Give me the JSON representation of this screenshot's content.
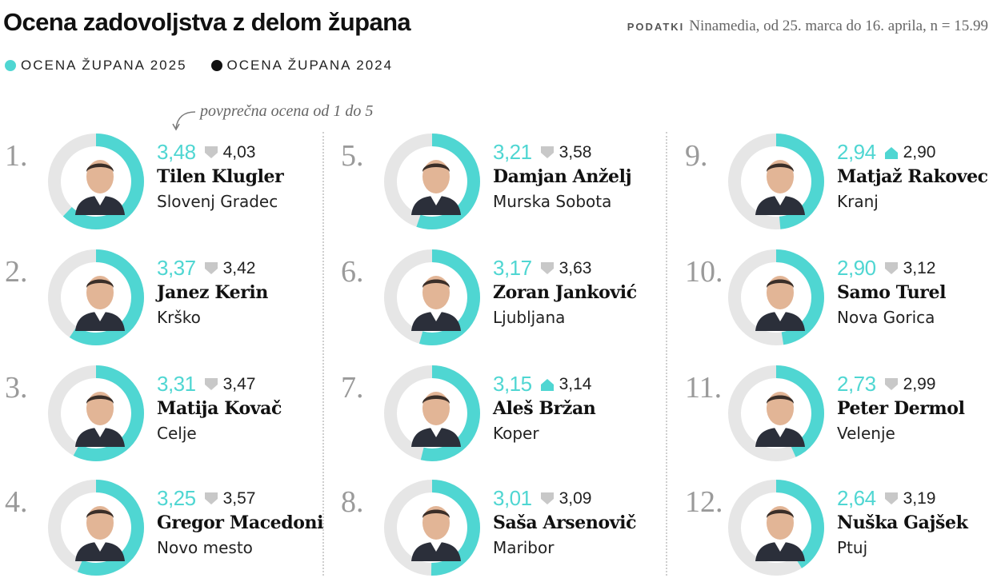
{
  "header": {
    "title": "Ocena zadovoljstva z delom župana",
    "source_label": "PODATKI",
    "source_text": "Ninamedia, od 25. marca do 16. aprila, n = 15.99"
  },
  "legend": [
    {
      "label": "OCENA ŽUPANA 2025",
      "color": "#4fd6d2"
    },
    {
      "label": "OCENA ŽUPANA 2024",
      "color": "#111111"
    }
  ],
  "note": "povprečna ocena od 1 do 5",
  "colors": {
    "accent": "#4fd6d2",
    "track": "#e6e6e6",
    "arrow": "#c8c8c8"
  },
  "chart_data": {
    "type": "table",
    "scale": [
      1,
      5
    ],
    "columns": [
      "rank",
      "score_2025",
      "trend",
      "score_2024",
      "name",
      "city"
    ],
    "rows": [
      {
        "rank": "1.",
        "score_2025": "3,48",
        "trend": "down",
        "score_2024": "4,03",
        "name": "Tilen Klugler",
        "city": "Slovenj Gradec",
        "value": 3.48
      },
      {
        "rank": "2.",
        "score_2025": "3,37",
        "trend": "down",
        "score_2024": "3,42",
        "name": "Janez Kerin",
        "city": "Krško",
        "value": 3.37
      },
      {
        "rank": "3.",
        "score_2025": "3,31",
        "trend": "down",
        "score_2024": "3,47",
        "name": "Matija Kovač",
        "city": "Celje",
        "value": 3.31
      },
      {
        "rank": "4.",
        "score_2025": "3,25",
        "trend": "down",
        "score_2024": "3,57",
        "name": "Gregor Macedoni",
        "city": "Novo mesto",
        "value": 3.25
      },
      {
        "rank": "5.",
        "score_2025": "3,21",
        "trend": "down",
        "score_2024": "3,58",
        "name": "Damjan Anželj",
        "city": "Murska Sobota",
        "value": 3.21
      },
      {
        "rank": "6.",
        "score_2025": "3,17",
        "trend": "down",
        "score_2024": "3,63",
        "name": "Zoran Janković",
        "city": "Ljubljana",
        "value": 3.17
      },
      {
        "rank": "7.",
        "score_2025": "3,15",
        "trend": "up",
        "score_2024": "3,14",
        "name": "Aleš Bržan",
        "city": "Koper",
        "value": 3.15
      },
      {
        "rank": "8.",
        "score_2025": "3,01",
        "trend": "down",
        "score_2024": "3,09",
        "name": "Saša Arsenovič",
        "city": "Maribor",
        "value": 3.01
      },
      {
        "rank": "9.",
        "score_2025": "2,94",
        "trend": "up",
        "score_2024": "2,90",
        "name": "Matjaž Rakovec",
        "city": "Kranj",
        "value": 2.94
      },
      {
        "rank": "10.",
        "score_2025": "2,90",
        "trend": "down",
        "score_2024": "3,12",
        "name": "Samo Turel",
        "city": "Nova Gorica",
        "value": 2.9
      },
      {
        "rank": "11.",
        "score_2025": "2,73",
        "trend": "down",
        "score_2024": "2,99",
        "name": "Peter Dermol",
        "city": "Velenje",
        "value": 2.73
      },
      {
        "rank": "12.",
        "score_2025": "2,64",
        "trend": "down",
        "score_2024": "3,19",
        "name": "Nuška Gajšek",
        "city": "Ptuj",
        "value": 2.64
      }
    ]
  }
}
